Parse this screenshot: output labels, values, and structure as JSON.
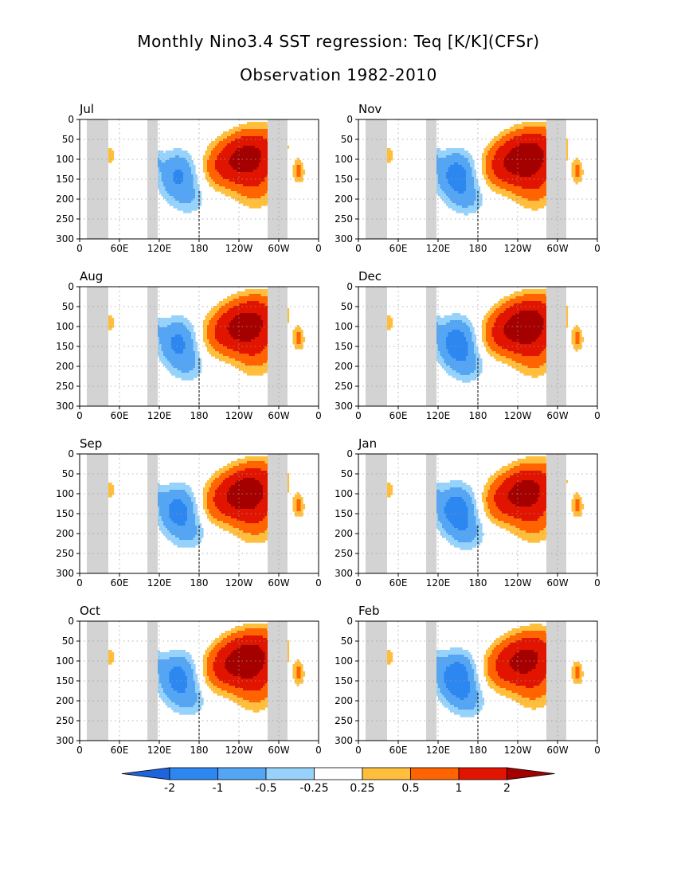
{
  "title": "Monthly Nino3.4 SST regression: Teq [K/K](CFSr)",
  "subtitle": "Observation 1982-2010",
  "colors": {
    "land_mask": "#d3d3d3",
    "frame": "#000000",
    "grid": "#9a9a9a"
  },
  "chart_data": [
    {
      "type": "heatmap",
      "panel_label": "Jul",
      "intensity": 0.85,
      "warm_depth": [
        90,
        250
      ],
      "cold_extent": 0.8,
      "ylim": [
        300,
        0
      ]
    },
    {
      "type": "heatmap",
      "panel_label": "Nov",
      "intensity": 1.0,
      "warm_depth": [
        70,
        280
      ],
      "cold_extent": 1.0,
      "ylim": [
        300,
        0
      ]
    },
    {
      "type": "heatmap",
      "panel_label": "Aug",
      "intensity": 0.9,
      "warm_depth": [
        85,
        220
      ],
      "cold_extent": 0.85,
      "ylim": [
        300,
        0
      ]
    },
    {
      "type": "heatmap",
      "panel_label": "Dec",
      "intensity": 1.0,
      "warm_depth": [
        60,
        260
      ],
      "cold_extent": 1.05,
      "ylim": [
        300,
        0
      ]
    },
    {
      "type": "heatmap",
      "panel_label": "Sep",
      "intensity": 0.95,
      "warm_depth": [
        75,
        230
      ],
      "cold_extent": 0.95,
      "ylim": [
        300,
        0
      ]
    },
    {
      "type": "heatmap",
      "panel_label": "Jan",
      "intensity": 0.85,
      "warm_depth": [
        55,
        230
      ],
      "cold_extent": 1.1,
      "ylim": [
        300,
        0
      ]
    },
    {
      "type": "heatmap",
      "panel_label": "Oct",
      "intensity": 1.0,
      "warm_depth": [
        75,
        270
      ],
      "cold_extent": 0.95,
      "ylim": [
        300,
        0
      ]
    },
    {
      "type": "heatmap",
      "panel_label": "Feb",
      "intensity": 0.8,
      "warm_depth": [
        55,
        220
      ],
      "cold_extent": 1.15,
      "ylim": [
        300,
        0
      ]
    }
  ],
  "axes": {
    "x_ticks": [
      "0",
      "60E",
      "120E",
      "180",
      "120W",
      "60W",
      "0"
    ],
    "y_ticks": [
      "0",
      "50",
      "100",
      "150",
      "200",
      "250",
      "300"
    ]
  },
  "colorbar": {
    "labels": [
      "-2",
      "-1",
      "-0.5",
      "-0.25",
      "0.25",
      "0.5",
      "1",
      "2"
    ],
    "colors": [
      "#1e64dc",
      "#2d87f0",
      "#55a5f5",
      "#96d2fa",
      "#ffffff",
      "#ffbe3c",
      "#ff6400",
      "#e11400",
      "#a50000"
    ],
    "bounds": [
      -2,
      -1,
      -0.5,
      -0.25,
      0.25,
      0.5,
      1,
      2
    ]
  }
}
